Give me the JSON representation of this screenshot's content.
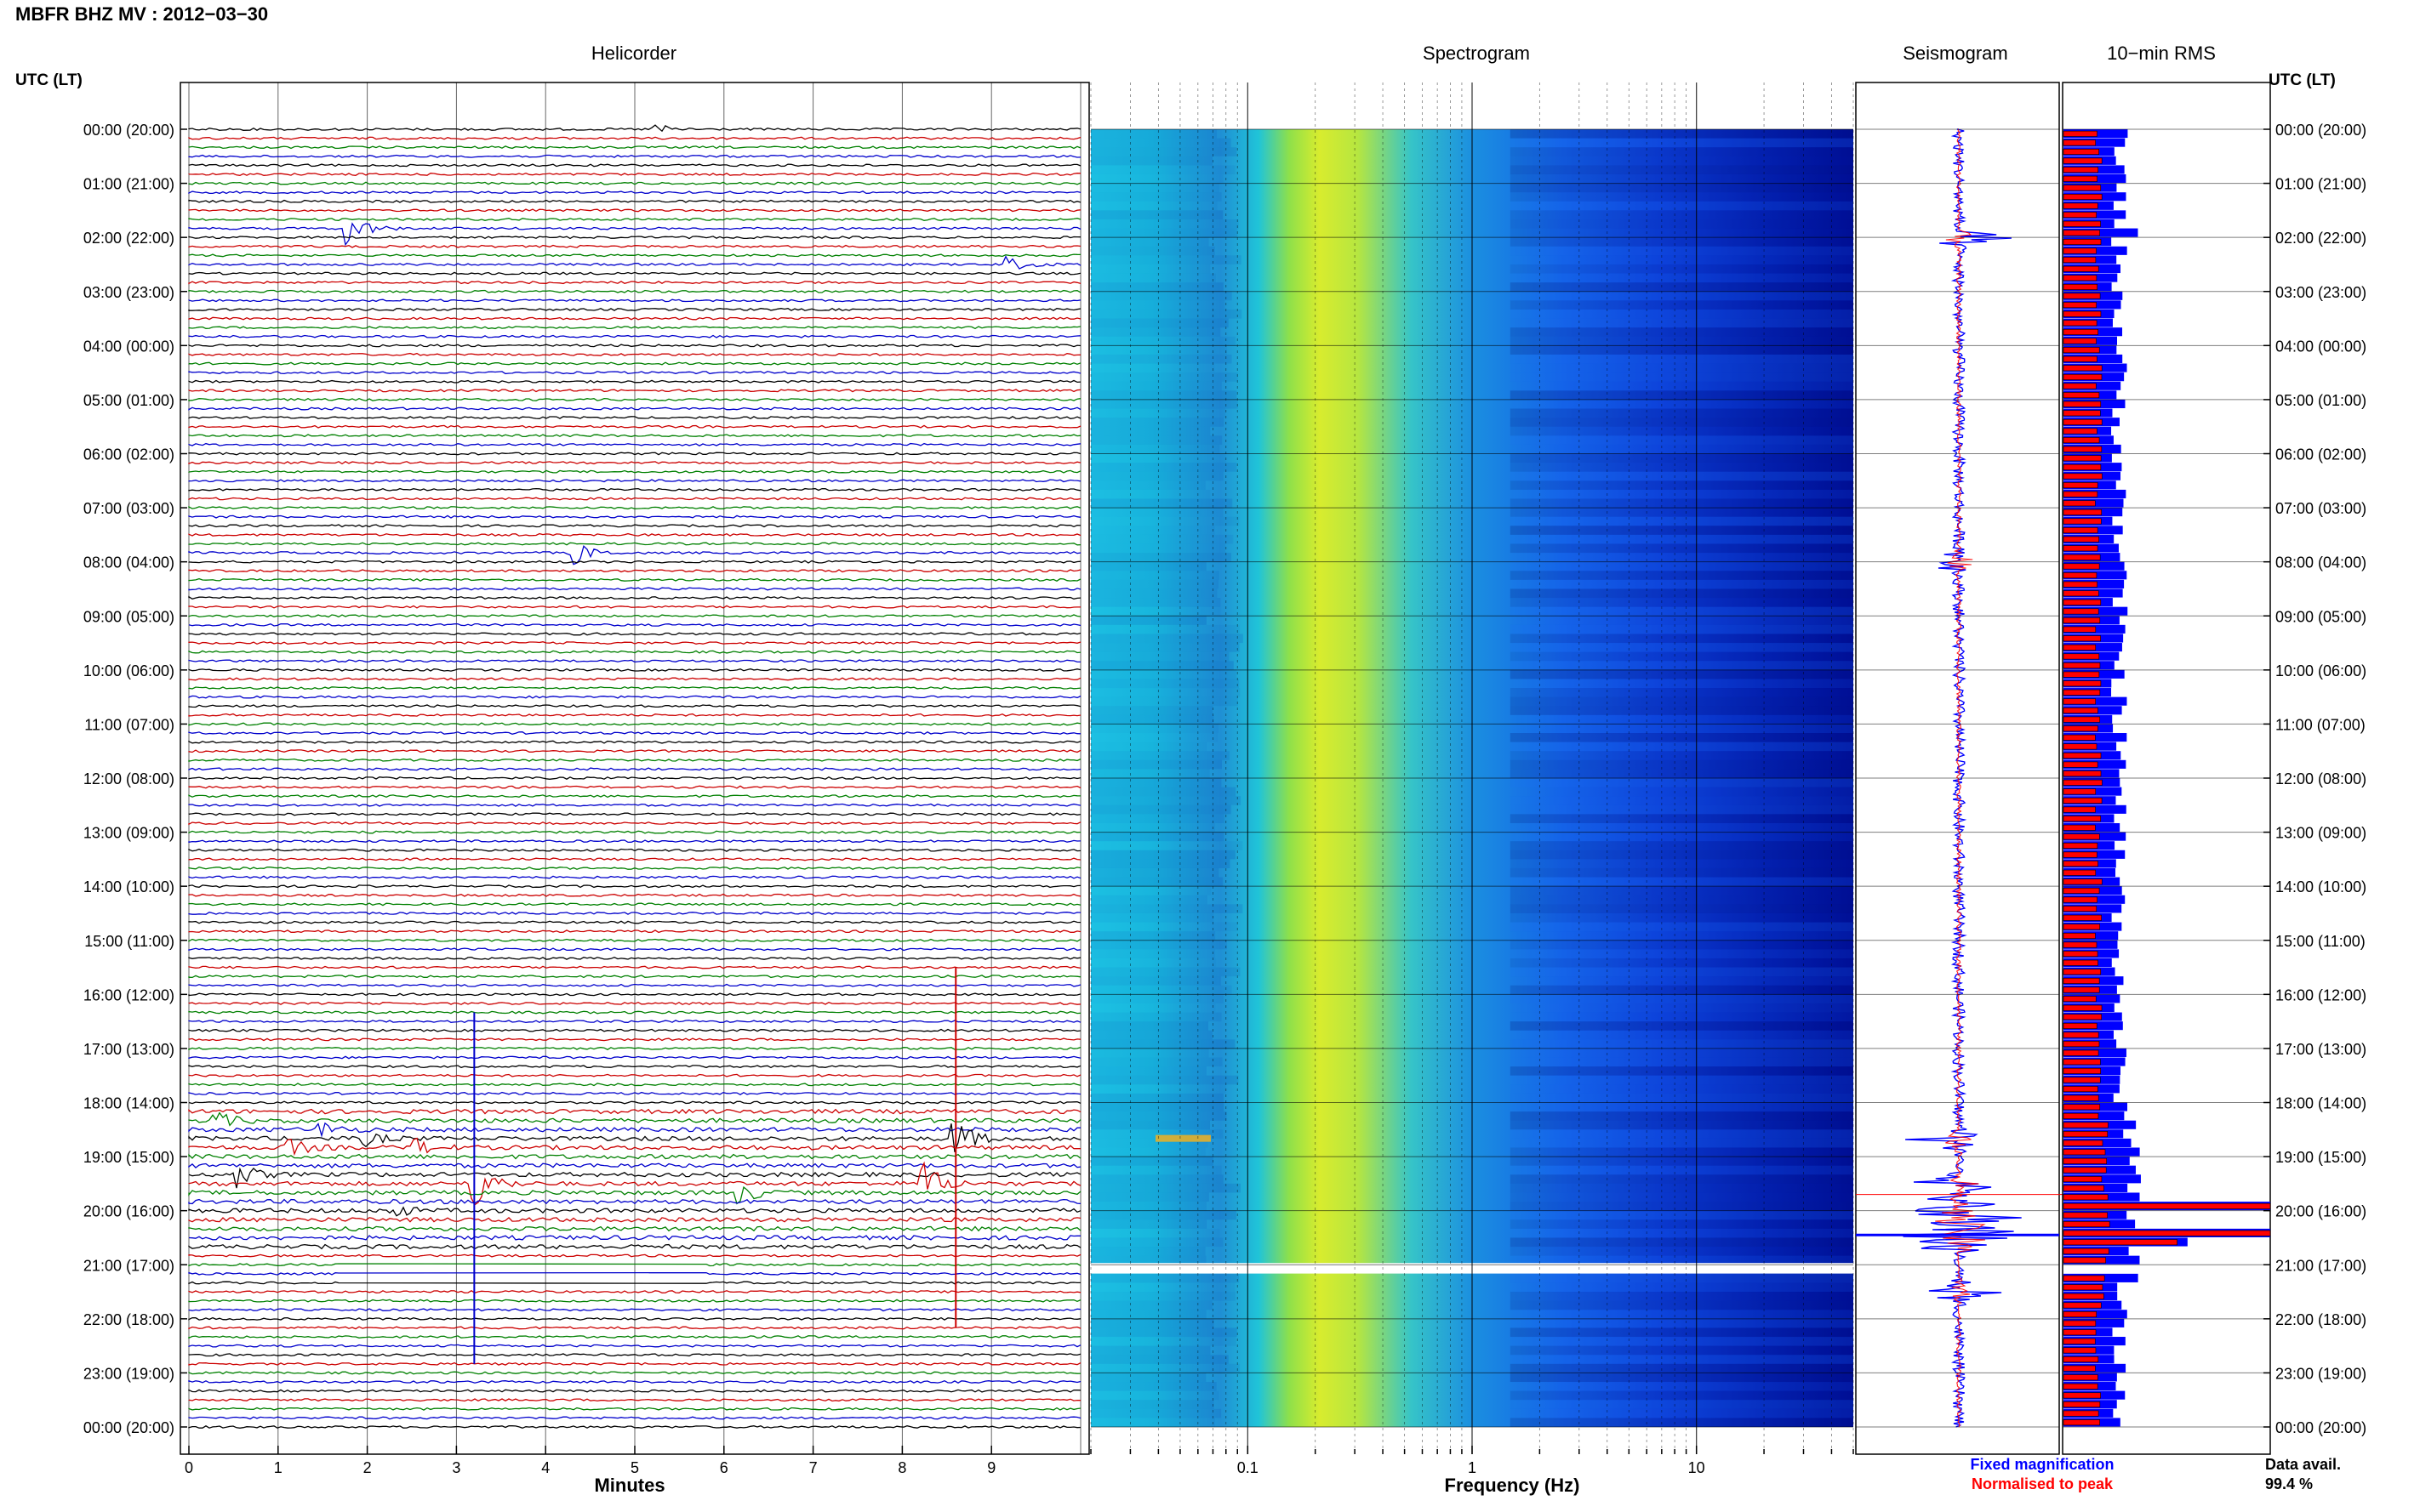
{
  "header": {
    "title": "MBFR BHZ MV : 2012−03−30",
    "tz_label_left": "UTC (LT)",
    "tz_label_right": "UTC (LT)"
  },
  "panels": {
    "helicorder": "Helicorder",
    "spectrogram": "Spectrogram",
    "seismogram": "Seismogram",
    "rms": "10−min RMS"
  },
  "footer": {
    "legend_fixed": "Fixed magnification",
    "legend_norm": "Normalised to peak",
    "data_avail_label": "Data avail.",
    "data_avail_value": "99.4 %"
  },
  "colors": {
    "trace_colors": [
      "#000000",
      "#cc0000",
      "#008000",
      "#0000cc"
    ],
    "fixed": "#0000ff",
    "normalised": "#ff0000",
    "spec_low": "#00008f",
    "spec_high": "#ffff00"
  },
  "chart_data": [
    {
      "type": "line",
      "name": "helicorder",
      "title": "Helicorder",
      "xlabel": "Minutes",
      "xlim": [
        0,
        10
      ],
      "x_ticks": [
        "0",
        "1",
        "2",
        "3",
        "4",
        "5",
        "6",
        "7",
        "8",
        "9"
      ],
      "rows_per_hour": 6,
      "hours": 24,
      "y_tick_labels": [
        "00:00 (20:00)",
        "01:00 (21:00)",
        "02:00 (22:00)",
        "03:00 (23:00)",
        "04:00 (00:00)",
        "05:00 (01:00)",
        "06:00 (02:00)",
        "07:00 (03:00)",
        "08:00 (04:00)",
        "09:00 (05:00)",
        "10:00 (06:00)",
        "11:00 (07:00)",
        "12:00 (08:00)",
        "13:00 (09:00)",
        "14:00 (10:00)",
        "15:00 (11:00)",
        "16:00 (12:00)",
        "17:00 (13:00)",
        "18:00 (14:00)",
        "19:00 (15:00)",
        "20:00 (16:00)",
        "21:00 (17:00)",
        "22:00 (18:00)",
        "23:00 (19:00)",
        "00:00 (20:00)"
      ],
      "events": [
        {
          "row": 0,
          "minute": 5.2,
          "amp": 0.5
        },
        {
          "row": 11,
          "minute": 1.8,
          "amp": 1.4
        },
        {
          "row": 15,
          "minute": 9.2,
          "amp": 0.6
        },
        {
          "row": 47,
          "minute": 4.3,
          "amp": 1.2
        },
        {
          "row": 110,
          "minute": 0.3,
          "amp": 0.7
        },
        {
          "row": 111,
          "minute": 1.5,
          "amp": 0.6
        },
        {
          "row": 112,
          "minute": 2.0,
          "amp": 0.5
        },
        {
          "row": 113,
          "minute": 1.1,
          "amp": 0.9
        },
        {
          "row": 113,
          "minute": 2.5,
          "amp": 0.9
        },
        {
          "row": 116,
          "minute": 0.5,
          "amp": 1.3
        },
        {
          "row": 117,
          "minute": 3.2,
          "amp": 2.2
        },
        {
          "row": 117,
          "minute": 8.25,
          "amp": 1.8
        },
        {
          "row": 118,
          "minute": 6.2,
          "amp": 0.8
        },
        {
          "row": 120,
          "minute": 2.2,
          "amp": 0.9
        },
        {
          "row": 112,
          "minute": 8.6,
          "amp": 1.6
        }
      ],
      "spikes": [
        {
          "minute": 3.2,
          "from_row": 98,
          "to_row": 137,
          "color_index": 3
        },
        {
          "minute": 8.6,
          "from_row": 93,
          "to_row": 133,
          "color_index": 1
        }
      ]
    },
    {
      "type": "heatmap",
      "name": "spectrogram",
      "title": "Spectrogram",
      "xlabel": "Frequency (Hz)",
      "x_scale": "log",
      "xlim": [
        0.02,
        50
      ],
      "x_ticks": [
        0.1,
        1,
        10
      ],
      "x_tick_labels": [
        "0.1",
        "1",
        "10"
      ],
      "gap_hours": [
        21.0,
        21.1
      ]
    },
    {
      "type": "line",
      "name": "seismogram",
      "title": "Seismogram",
      "series": [
        {
          "name": "Fixed magnification",
          "color": "#0000ff"
        },
        {
          "name": "Normalised to peak",
          "color": "#ff0000"
        }
      ],
      "bursts_hours": [
        2.0,
        8.0,
        18.7,
        19.5,
        20.2,
        20.5,
        21.5
      ]
    },
    {
      "type": "bar",
      "name": "rms",
      "title": "10−min RMS",
      "orientation": "horizontal",
      "bins_per_hour": 6,
      "fixed_level": 0.27,
      "normalised_level": 0.17,
      "peaks": [
        {
          "hour": 1.95,
          "fixed": 0.36
        },
        {
          "hour": 19.1,
          "fixed": 0.32
        },
        {
          "hour": 19.9,
          "fixed": 1.0,
          "normalised": 1.0
        },
        {
          "hour": 20.4,
          "fixed": 1.0,
          "normalised": 1.0
        },
        {
          "hour": 20.6,
          "fixed": 0.6,
          "normalised": 0.55
        },
        {
          "hour": 21.5,
          "fixed": 0.26
        }
      ]
    }
  ]
}
